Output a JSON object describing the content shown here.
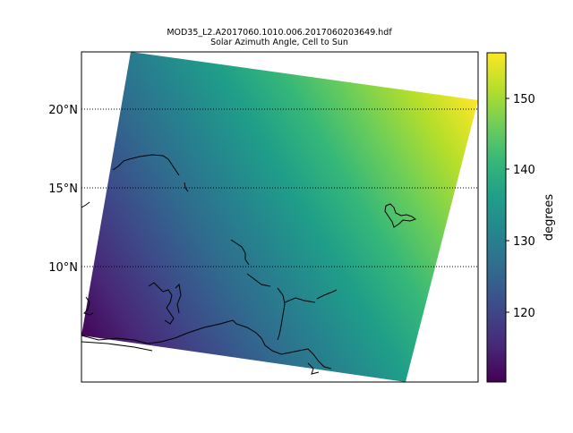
{
  "title": {
    "line1": "MOD35_L2.A2017060.1010.006.2017060203649.hdf",
    "line2": "Solar Azimuth Angle, Cell to Sun"
  },
  "colors": {
    "viridis": [
      "#440154",
      "#482878",
      "#3e4989",
      "#31688e",
      "#26828e",
      "#1f9e89",
      "#35b779",
      "#6ece58",
      "#b5de2b",
      "#fde725"
    ]
  },
  "map": {
    "latitude_labels": [
      "20°N",
      "15°N",
      "10°N"
    ],
    "latitude_values": [
      20,
      15,
      10
    ],
    "parallels_style": "dotted"
  },
  "colorbar": {
    "label": "degrees",
    "ticks": [
      "120",
      "130",
      "140",
      "150"
    ],
    "tick_values": [
      120,
      130,
      140,
      150
    ],
    "range": [
      110.5,
      156
    ]
  }
}
